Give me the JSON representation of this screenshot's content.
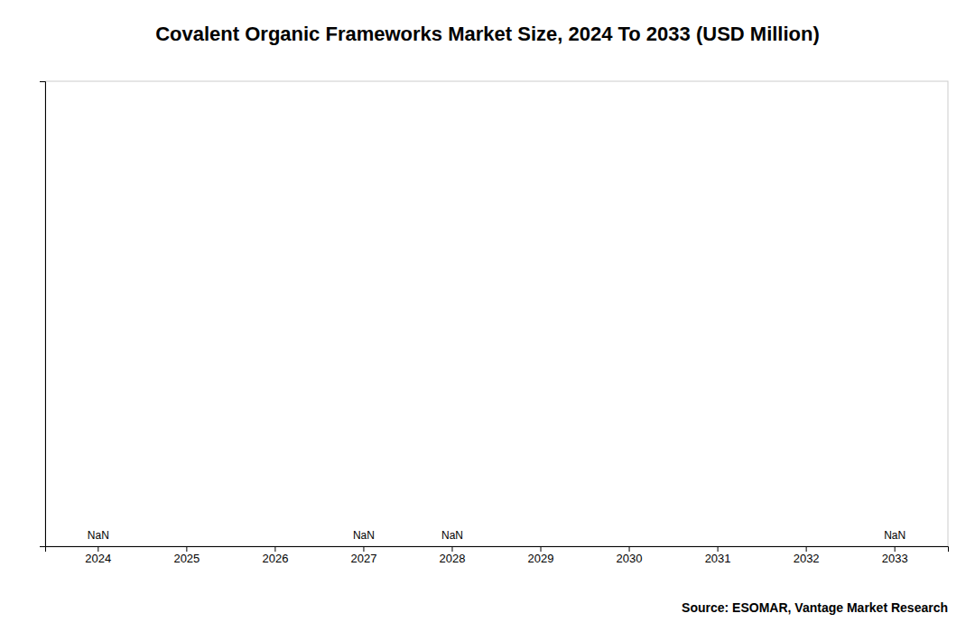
{
  "chart_data": {
    "type": "bar",
    "title": "Covalent Organic Frameworks Market Size, 2024 To 2033 (USD Million)",
    "categories": [
      "2024",
      "2025",
      "2026",
      "2027",
      "2028",
      "2029",
      "2030",
      "2031",
      "2032",
      "2033"
    ],
    "values": [
      null,
      null,
      null,
      null,
      null,
      null,
      null,
      null,
      null,
      null
    ],
    "value_labels": [
      "NaN",
      null,
      null,
      "NaN",
      "NaN",
      null,
      null,
      null,
      null,
      "NaN"
    ],
    "data_labels": true,
    "ylim": [
      0,
      1
    ],
    "yticks": [],
    "tick_labels": "x",
    "grid": false,
    "annotations": [
      "Source: ESOMAR, Vantage Market Research"
    ]
  }
}
